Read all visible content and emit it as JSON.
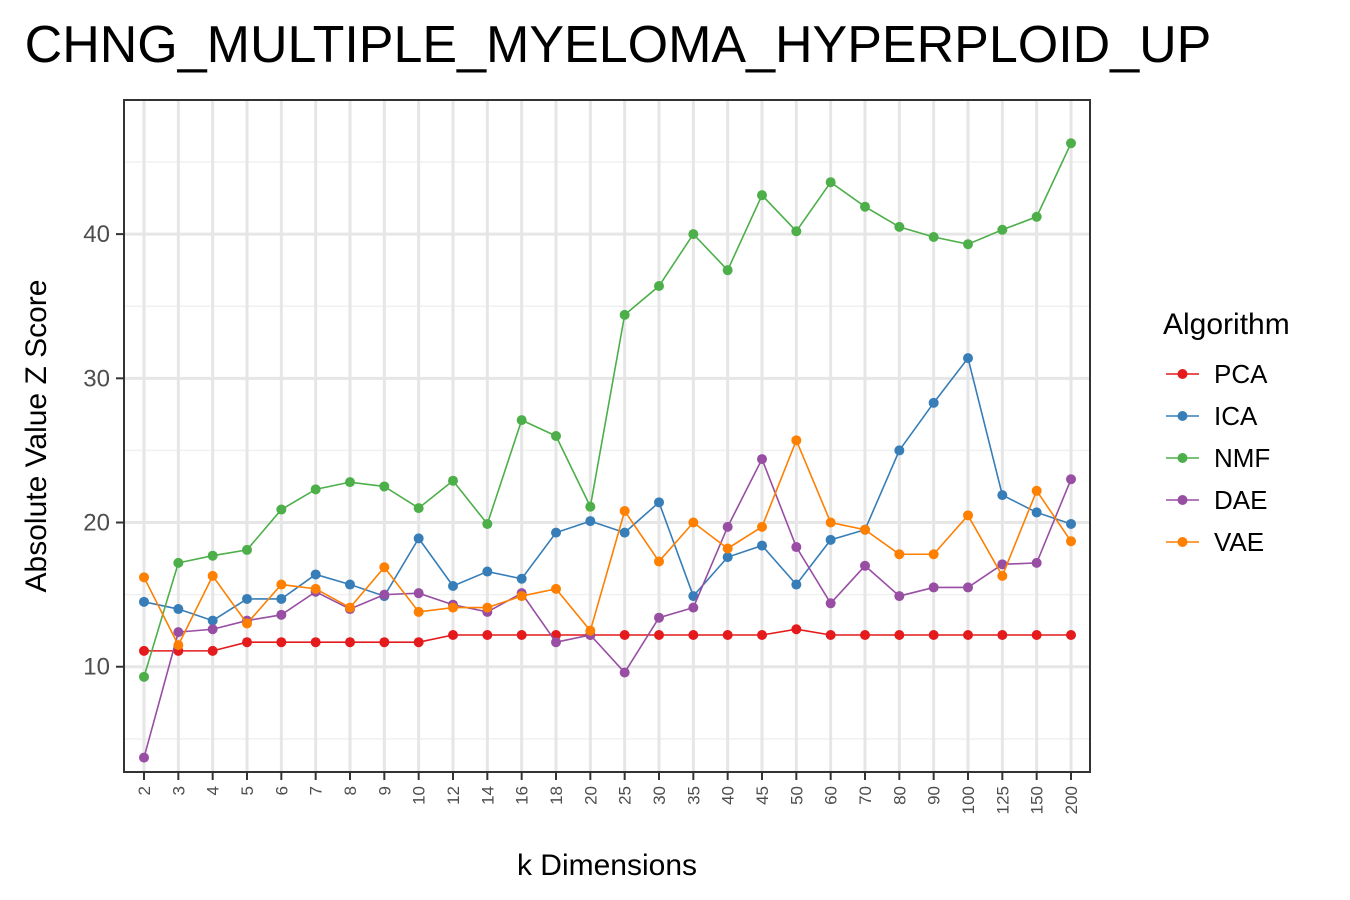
{
  "chart_data": {
    "type": "line",
    "title": "CHNG_MULTIPLE_MYELOMA_HYPERPLOID_UP",
    "xlabel": "k Dimensions",
    "ylabel": "Absolute Value Z Score",
    "categories": [
      "2",
      "3",
      "4",
      "5",
      "6",
      "7",
      "8",
      "9",
      "10",
      "12",
      "14",
      "16",
      "18",
      "20",
      "25",
      "30",
      "35",
      "40",
      "45",
      "50",
      "60",
      "70",
      "80",
      "90",
      "100",
      "125",
      "150",
      "200"
    ],
    "ylim": [
      2.7,
      49.3
    ],
    "yticks": [
      10,
      20,
      30,
      40
    ],
    "yticks_labels": [
      "10",
      "20",
      "30",
      "40"
    ],
    "grid": true,
    "legend": {
      "title": "Algorithm",
      "position": "right"
    },
    "series": [
      {
        "name": "PCA",
        "color": "#e41a1c",
        "values": [
          11.1,
          11.1,
          11.1,
          11.7,
          11.7,
          11.7,
          11.7,
          11.7,
          11.7,
          12.2,
          12.2,
          12.2,
          12.2,
          12.2,
          12.2,
          12.2,
          12.2,
          12.2,
          12.2,
          12.6,
          12.2,
          12.2,
          12.2,
          12.2,
          12.2,
          12.2,
          12.2,
          12.2
        ]
      },
      {
        "name": "ICA",
        "color": "#377eb8",
        "values": [
          14.5,
          14.0,
          13.2,
          14.7,
          14.7,
          16.4,
          15.7,
          14.9,
          18.9,
          15.6,
          16.6,
          16.1,
          19.3,
          20.1,
          19.3,
          21.4,
          14.9,
          17.6,
          18.4,
          15.7,
          18.8,
          19.5,
          25.0,
          28.3,
          31.4,
          21.9,
          20.7,
          19.9
        ]
      },
      {
        "name": "NMF",
        "color": "#4daf4a",
        "values": [
          9.3,
          17.2,
          17.7,
          18.1,
          20.9,
          22.3,
          22.8,
          22.5,
          21.0,
          22.9,
          19.9,
          27.1,
          26.0,
          21.1,
          34.4,
          36.4,
          40.0,
          37.5,
          42.7,
          40.2,
          43.6,
          41.9,
          40.5,
          39.8,
          39.3,
          40.3,
          41.2,
          46.3
        ]
      },
      {
        "name": "DAE",
        "color": "#984ea3",
        "values": [
          3.7,
          12.4,
          12.6,
          13.2,
          13.6,
          15.2,
          14.0,
          15.0,
          15.1,
          14.3,
          13.8,
          15.1,
          11.7,
          12.2,
          9.6,
          13.4,
          14.1,
          19.7,
          24.4,
          18.3,
          14.4,
          17.0,
          14.9,
          15.5,
          15.5,
          17.1,
          17.2,
          23.0
        ]
      },
      {
        "name": "VAE",
        "color": "#ff7f00",
        "values": [
          16.2,
          11.5,
          16.3,
          13.0,
          15.7,
          15.4,
          14.1,
          16.9,
          13.8,
          14.1,
          14.1,
          14.9,
          15.4,
          12.5,
          20.8,
          17.3,
          20.0,
          18.2,
          19.7,
          25.7,
          20.0,
          19.5,
          17.8,
          17.8,
          20.5,
          16.3,
          22.2,
          18.7
        ]
      }
    ]
  }
}
